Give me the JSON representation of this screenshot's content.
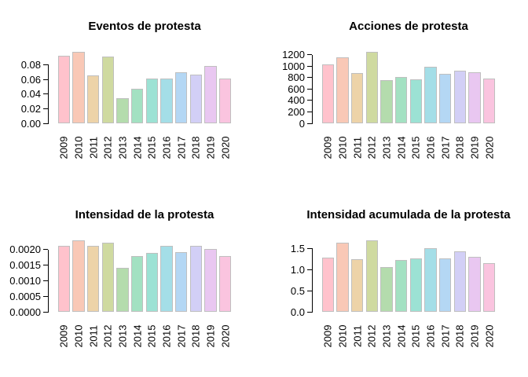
{
  "figure": {
    "background": "#FFFFFF",
    "text_color": "#000000",
    "axis_color": "#000000",
    "bar_border_color": "#BFBFBF",
    "bar_colors": [
      "#FFC2CC",
      "#F9C8B6",
      "#EDD3A8",
      "#CFDAA0",
      "#B4DCAD",
      "#A3E1C2",
      "#9CE2D4",
      "#A4DEE7",
      "#B4D7F4",
      "#D2CFF6",
      "#E9C7F1",
      "#FAC4DF"
    ]
  },
  "chart_data": [
    {
      "type": "bar",
      "title": "Eventos de protesta",
      "categories": [
        "2009",
        "2010",
        "2011",
        "2012",
        "2013",
        "2014",
        "2015",
        "2016",
        "2017",
        "2018",
        "2019",
        "2020"
      ],
      "values": [
        0.092,
        0.098,
        0.066,
        0.091,
        0.034,
        0.047,
        0.061,
        0.061,
        0.07,
        0.067,
        0.078,
        0.061
      ],
      "yticks": [
        0,
        0.02,
        0.04,
        0.06,
        0.08
      ],
      "ytick_labels": [
        "0.00",
        "0.02",
        "0.04",
        "0.06",
        "0.08"
      ],
      "ylim": [
        0,
        0.102
      ],
      "xlabel": "",
      "ylabel": "",
      "grid": false,
      "legend": null
    },
    {
      "type": "bar",
      "title": "Acciones de protesta",
      "categories": [
        "2009",
        "2010",
        "2011",
        "2012",
        "2013",
        "2014",
        "2015",
        "2016",
        "2017",
        "2018",
        "2019",
        "2020"
      ],
      "values": [
        1030,
        1150,
        880,
        1255,
        760,
        805,
        770,
        985,
        860,
        915,
        890,
        780
      ],
      "yticks": [
        0,
        200,
        400,
        600,
        800,
        1000,
        1200
      ],
      "ytick_labels": [
        "0",
        "200",
        "400",
        "600",
        "800",
        "1000",
        "1200"
      ],
      "ylim": [
        0,
        1305
      ],
      "xlabel": "",
      "ylabel": "",
      "grid": false,
      "legend": null
    },
    {
      "type": "bar",
      "title": "Intensidad de la protesta",
      "categories": [
        "2009",
        "2010",
        "2011",
        "2012",
        "2013",
        "2014",
        "2015",
        "2016",
        "2017",
        "2018",
        "2019",
        "2020"
      ],
      "values": [
        0.00211,
        0.0023,
        0.00211,
        0.00221,
        0.0014,
        0.0018,
        0.0019,
        0.00212,
        0.00191,
        0.00211,
        0.00201,
        0.0018
      ],
      "yticks": [
        0,
        0.0005,
        0.001,
        0.0015,
        0.002
      ],
      "ytick_labels": [
        "0.0000",
        "0.0005",
        "0.0010",
        "0.0015",
        "0.0020"
      ],
      "ylim": [
        0,
        0.002392
      ],
      "xlabel": "",
      "ylabel": "",
      "grid": false,
      "legend": null
    },
    {
      "type": "bar",
      "title": "Intensidad acumulada de la protesta",
      "categories": [
        "2009",
        "2010",
        "2011",
        "2012",
        "2013",
        "2014",
        "2015",
        "2016",
        "2017",
        "2018",
        "2019",
        "2020"
      ],
      "values": [
        1.29,
        1.64,
        1.24,
        1.7,
        1.07,
        1.22,
        1.26,
        1.51,
        1.26,
        1.43,
        1.31,
        1.16
      ],
      "yticks": [
        0,
        0.5,
        1.0,
        1.5
      ],
      "ytick_labels": [
        "0.0",
        "0.5",
        "1.0",
        "1.5"
      ],
      "ylim": [
        0,
        1.768
      ],
      "xlabel": "",
      "ylabel": "",
      "grid": false,
      "legend": null
    }
  ]
}
